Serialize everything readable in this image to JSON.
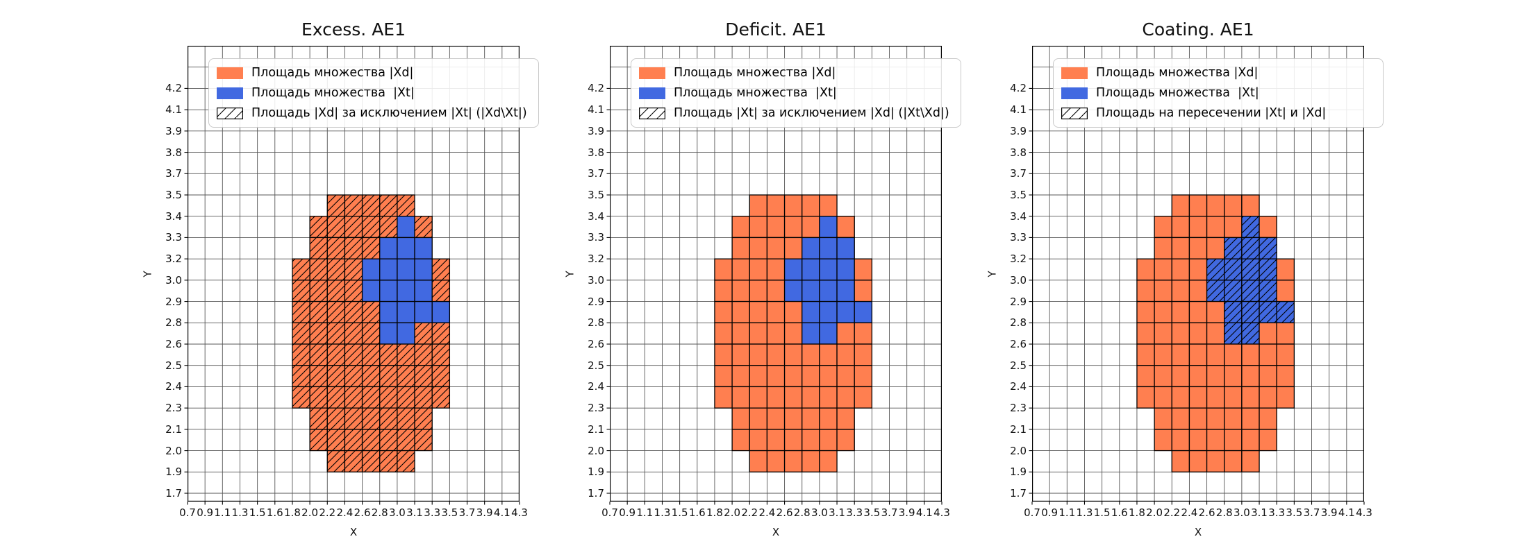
{
  "figure": {
    "background": "#ffffff"
  },
  "colors": {
    "xd_orange": "#FF7F50",
    "xt_blue": "#4169E1",
    "grid_line": "#555555",
    "cell_border": "#000000",
    "axes_spine": "#000000",
    "legend_border": "#c9c9c9"
  },
  "chart_data": {
    "type": "heatmap",
    "description": "Three grid subplots showing set areas |Xd| (orange) and |Xt| (blue) on an X-Y cell grid; hatching marks a different derived set in each subplot",
    "xlabel": "X",
    "ylabel": "Y",
    "grid": true,
    "x_tick_labels": [
      "0.7",
      "0.9",
      "1.1",
      "1.3",
      "1.5",
      "1.6",
      "1.8",
      "2.0",
      "2.2",
      "2.4",
      "2.6",
      "2.8",
      "3.0",
      "3.1",
      "3.3",
      "3.5",
      "3.7",
      "3.9",
      "4.1",
      "4.3"
    ],
    "y_tick_labels": [
      "4.2",
      "4.1",
      "3.9",
      "3.8",
      "3.7",
      "3.5",
      "3.4",
      "3.3",
      "3.2",
      "3.0",
      "2.9",
      "2.8",
      "2.6",
      "2.5",
      "2.4",
      "2.3",
      "2.1",
      "2.0",
      "1.9",
      "1.7"
    ],
    "subplots": [
      {
        "title": "Excess. AE1",
        "hatch_on": "xd",
        "legend": [
          {
            "swatch": "xd",
            "label": "Площадь множества |Xd|"
          },
          {
            "swatch": "xt",
            "label": "Площадь множества  |Xt|"
          },
          {
            "swatch": "hatch",
            "label": "Площадь |Xd| за исключением |Xt| (|Xd\\Xt|)"
          }
        ]
      },
      {
        "title": "Deficit. AE1",
        "hatch_on": "none",
        "legend": [
          {
            "swatch": "xd",
            "label": "Площадь множества |Xd|"
          },
          {
            "swatch": "xt",
            "label": "Площадь множества  |Xt|"
          },
          {
            "swatch": "hatch",
            "label": "Площадь |Xt| за исключением |Xd| (|Xt\\Xd|)"
          }
        ]
      },
      {
        "title": "Coating. AE1",
        "hatch_on": "xt",
        "legend": [
          {
            "swatch": "xd",
            "label": "Площадь множества |Xd|"
          },
          {
            "swatch": "xt",
            "label": "Площадь множества  |Xt|"
          },
          {
            "swatch": "hatch",
            "label": "Площадь на пересечении |Xt| и |Xd|"
          }
        ]
      }
    ],
    "cell_rows": [
      {
        "band": 7,
        "runs": [
          {
            "from": 8,
            "to": 12,
            "set": "xd"
          }
        ]
      },
      {
        "band": 8,
        "runs": [
          {
            "from": 7,
            "to": 11,
            "set": "xd"
          },
          {
            "from": 12,
            "to": 12,
            "set": "xt"
          },
          {
            "from": 13,
            "to": 13,
            "set": "xd"
          }
        ]
      },
      {
        "band": 9,
        "runs": [
          {
            "from": 7,
            "to": 10,
            "set": "xd"
          },
          {
            "from": 11,
            "to": 13,
            "set": "xt"
          }
        ]
      },
      {
        "band": 10,
        "runs": [
          {
            "from": 6,
            "to": 9,
            "set": "xd"
          },
          {
            "from": 10,
            "to": 13,
            "set": "xt"
          },
          {
            "from": 14,
            "to": 14,
            "set": "xd"
          }
        ]
      },
      {
        "band": 11,
        "runs": [
          {
            "from": 6,
            "to": 9,
            "set": "xd"
          },
          {
            "from": 10,
            "to": 13,
            "set": "xt"
          },
          {
            "from": 14,
            "to": 14,
            "set": "xd"
          }
        ]
      },
      {
        "band": 12,
        "runs": [
          {
            "from": 6,
            "to": 10,
            "set": "xd"
          },
          {
            "from": 11,
            "to": 14,
            "set": "xt"
          }
        ]
      },
      {
        "band": 13,
        "runs": [
          {
            "from": 6,
            "to": 10,
            "set": "xd"
          },
          {
            "from": 11,
            "to": 12,
            "set": "xt"
          },
          {
            "from": 13,
            "to": 14,
            "set": "xd"
          }
        ]
      },
      {
        "band": 14,
        "runs": [
          {
            "from": 6,
            "to": 14,
            "set": "xd"
          }
        ]
      },
      {
        "band": 15,
        "runs": [
          {
            "from": 6,
            "to": 14,
            "set": "xd"
          }
        ]
      },
      {
        "band": 16,
        "runs": [
          {
            "from": 6,
            "to": 14,
            "set": "xd"
          }
        ]
      },
      {
        "band": 17,
        "runs": [
          {
            "from": 7,
            "to": 13,
            "set": "xd"
          }
        ]
      },
      {
        "band": 18,
        "runs": [
          {
            "from": 7,
            "to": 13,
            "set": "xd"
          }
        ]
      },
      {
        "band": 19,
        "runs": [
          {
            "from": 8,
            "to": 12,
            "set": "xd"
          }
        ]
      }
    ]
  }
}
